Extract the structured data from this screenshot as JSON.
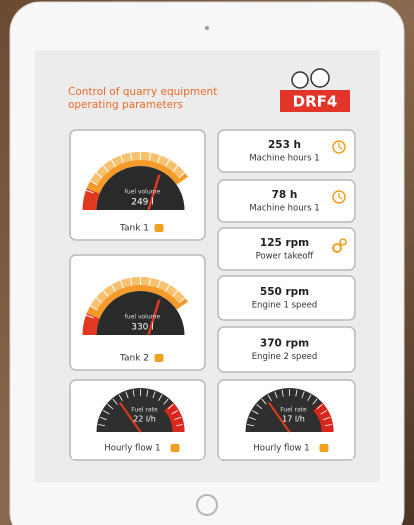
{
  "header": {
    "title": [
      "Control of quarry equipment",
      "operating parameters"
    ],
    "logo": "DRF4"
  },
  "gauges": [
    {
      "caption": "fuel volume",
      "value": "249 l",
      "label": "Tank 1",
      "kind": "tank"
    },
    {
      "caption": "fuel volume",
      "value": "330 l",
      "label": "Tank 2",
      "kind": "tank"
    },
    {
      "caption": "Fuel rate",
      "value": "22 l/h",
      "label": "Hourly flow 1",
      "kind": "flow"
    },
    {
      "caption": "Fuel rate",
      "value": "17 l/h",
      "label": "Hourly flow 1",
      "kind": "flow"
    }
  ],
  "cards": [
    {
      "value": "253 h",
      "label": "Machine hours 1",
      "icon": "clock"
    },
    {
      "value": "78 h",
      "label": "Machine hours 1",
      "icon": "clock"
    },
    {
      "value": "125 rpm",
      "label": "Power takeoff",
      "icon": "gear"
    },
    {
      "value": "550 rpm",
      "label": "Engine 1 speed",
      "icon": "none"
    },
    {
      "value": "370 rpm",
      "label": "Engine 2 speed",
      "icon": "none"
    }
  ]
}
